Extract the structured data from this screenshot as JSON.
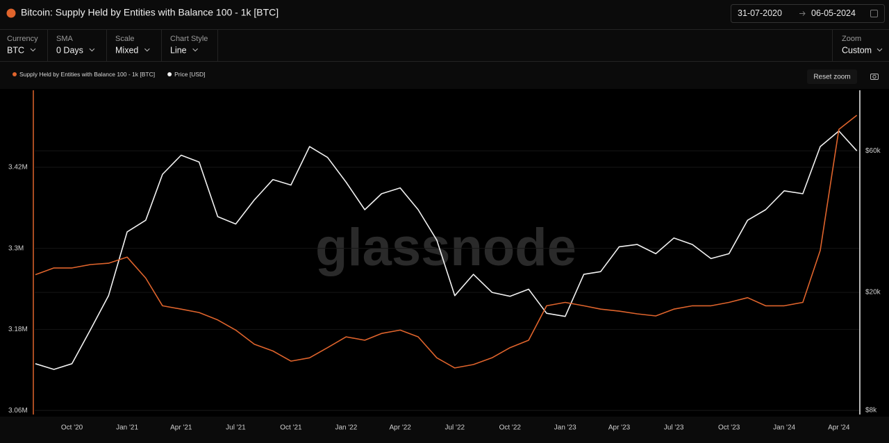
{
  "header": {
    "title": "Bitcoin: Supply Held by Entities with Balance 100 - 1k [BTC]",
    "date_from": "31-07-2020",
    "date_to": "06-05-2024"
  },
  "controls": [
    {
      "label": "Currency",
      "value": "BTC"
    },
    {
      "label": "SMA",
      "value": "0 Days"
    },
    {
      "label": "Scale",
      "value": "Mixed"
    },
    {
      "label": "Chart Style",
      "value": "Line"
    }
  ],
  "zoom": {
    "label": "Zoom",
    "value": "Custom"
  },
  "reset_zoom": "Reset zoom",
  "watermark": "glassnode",
  "chart_data": {
    "type": "line",
    "x": [
      "2020-08",
      "2020-09",
      "2020-10",
      "2020-11",
      "2020-12",
      "2021-01",
      "2021-02",
      "2021-03",
      "2021-04",
      "2021-05",
      "2021-06",
      "2021-07",
      "2021-08",
      "2021-09",
      "2021-10",
      "2021-11",
      "2021-12",
      "2022-01",
      "2022-02",
      "2022-03",
      "2022-04",
      "2022-05",
      "2022-06",
      "2022-07",
      "2022-08",
      "2022-09",
      "2022-10",
      "2022-11",
      "2022-12",
      "2023-01",
      "2023-02",
      "2023-03",
      "2023-04",
      "2023-05",
      "2023-06",
      "2023-07",
      "2023-08",
      "2023-09",
      "2023-10",
      "2023-11",
      "2023-12",
      "2024-01",
      "2024-02",
      "2024-03",
      "2024-04",
      "2024-05"
    ],
    "xlim": [
      "2020-07-31",
      "2024-05-06"
    ],
    "xticks": [
      {
        "value": "2020-10",
        "label": "Oct '20"
      },
      {
        "value": "2021-01",
        "label": "Jan '21"
      },
      {
        "value": "2021-04",
        "label": "Apr '21"
      },
      {
        "value": "2021-07",
        "label": "Jul '21"
      },
      {
        "value": "2021-10",
        "label": "Oct '21"
      },
      {
        "value": "2022-01",
        "label": "Jan '22"
      },
      {
        "value": "2022-04",
        "label": "Apr '22"
      },
      {
        "value": "2022-07",
        "label": "Jul '22"
      },
      {
        "value": "2022-10",
        "label": "Oct '22"
      },
      {
        "value": "2023-01",
        "label": "Jan '23"
      },
      {
        "value": "2023-04",
        "label": "Apr '23"
      },
      {
        "value": "2023-07",
        "label": "Jul '23"
      },
      {
        "value": "2023-10",
        "label": "Oct '23"
      },
      {
        "value": "2024-01",
        "label": "Jan '24"
      },
      {
        "value": "2024-04",
        "label": "Apr '24"
      }
    ],
    "ylim": [
      3.054,
      3.534
    ],
    "yticks": [
      {
        "value": 3.06,
        "label": "3.06M"
      },
      {
        "value": 3.18,
        "label": "3.18M"
      },
      {
        "value": 3.3,
        "label": "3.3M"
      },
      {
        "value": 3.42,
        "label": "3.42M"
      }
    ],
    "y2lim": [
      7750,
      96000
    ],
    "y2ticks": [
      {
        "value": 8000,
        "label": "$8k"
      },
      {
        "value": 20000,
        "label": "$20k"
      },
      {
        "value": 60000,
        "label": "$60k"
      }
    ],
    "y2_scale": "log",
    "grid": true,
    "legend_position": "top-left",
    "series": [
      {
        "name": "Supply Held by Entities with Balance 100 - 1k [BTC]",
        "color": "#e0642c",
        "values": [
          3.261,
          3.271,
          3.271,
          3.276,
          3.278,
          3.287,
          3.256,
          3.215,
          3.21,
          3.205,
          3.194,
          3.179,
          3.158,
          3.148,
          3.133,
          3.138,
          3.153,
          3.169,
          3.164,
          3.174,
          3.179,
          3.169,
          3.138,
          3.123,
          3.128,
          3.138,
          3.153,
          3.164,
          3.215,
          3.22,
          3.215,
          3.21,
          3.207,
          3.203,
          3.2,
          3.21,
          3.215,
          3.215,
          3.22,
          3.227,
          3.215,
          3.215,
          3.22,
          3.297,
          3.476,
          3.497
        ]
      },
      {
        "name": "Price [USD]",
        "color": "#f2f2f2",
        "axis": "y2",
        "values": [
          11500,
          11000,
          11500,
          15000,
          19500,
          32000,
          35000,
          50000,
          58000,
          55000,
          36000,
          34000,
          41000,
          48000,
          46000,
          62000,
          57000,
          47000,
          38000,
          43000,
          45000,
          38000,
          30000,
          19500,
          23000,
          20000,
          19400,
          20500,
          17000,
          16600,
          23000,
          23500,
          28500,
          29000,
          27000,
          30500,
          29000,
          26000,
          27000,
          35000,
          38000,
          44000,
          43000,
          62000,
          70000,
          60000
        ]
      }
    ]
  }
}
